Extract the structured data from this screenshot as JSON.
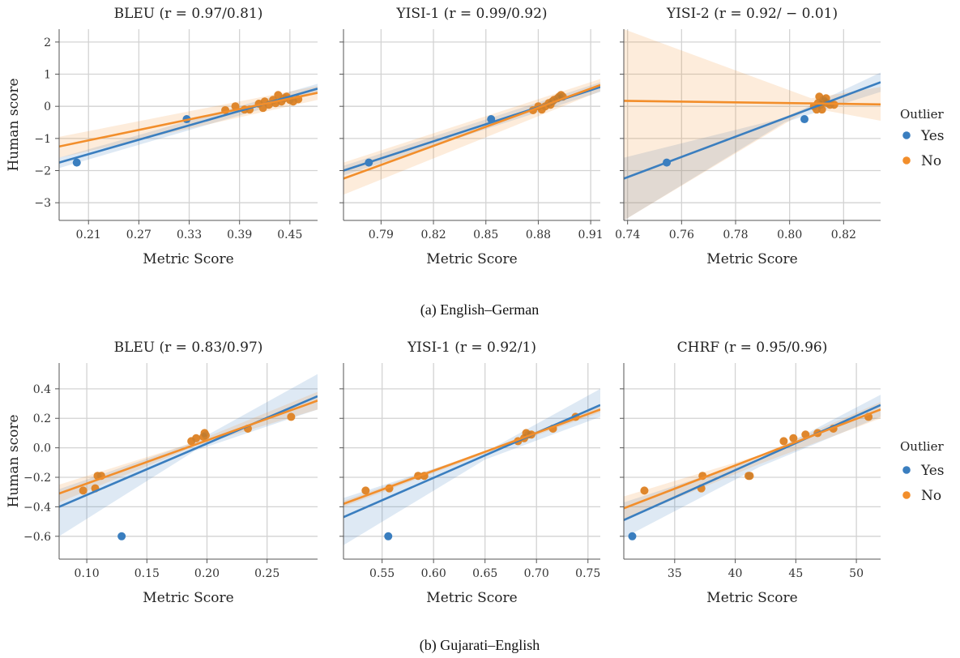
{
  "captions": [
    "(a) English–German",
    "(b) Gujarati–English"
  ],
  "legend": {
    "title": "Outlier",
    "items": [
      {
        "label": "Yes",
        "color": "#3a7ebf"
      },
      {
        "label": "No",
        "color": "#f28e2b"
      }
    ]
  },
  "chart_data": [
    {
      "type": "scatter",
      "row": 0,
      "col": 0,
      "title": "BLEU (r = 0.97/0.81)",
      "xlabel": "Metric Score",
      "ylabel": "Human score",
      "xlim": [
        0.175,
        0.483
      ],
      "ylim": [
        -3.55,
        2.4
      ],
      "xticks": [
        0.21,
        0.27,
        0.33,
        0.39,
        0.45
      ],
      "xtick_labels": [
        "0.21",
        "0.27",
        "0.33",
        "0.39",
        "0.45"
      ],
      "yticks": [
        2,
        1,
        0,
        -1,
        -2,
        -3
      ],
      "ytick_labels": [
        "2",
        "1",
        "0",
        "−1",
        "−2",
        "−3"
      ],
      "points_outlier": [
        [
          0.196,
          -1.75
        ],
        [
          0.327,
          -0.4
        ]
      ],
      "points_normal": [
        [
          0.373,
          -0.12
        ],
        [
          0.385,
          0.0
        ],
        [
          0.396,
          -0.1
        ],
        [
          0.402,
          -0.1
        ],
        [
          0.413,
          0.08
        ],
        [
          0.418,
          -0.05
        ],
        [
          0.42,
          0.15
        ],
        [
          0.425,
          0.05
        ],
        [
          0.43,
          0.2
        ],
        [
          0.433,
          0.1
        ],
        [
          0.436,
          0.35
        ],
        [
          0.44,
          0.15
        ],
        [
          0.443,
          0.25
        ],
        [
          0.446,
          0.3
        ],
        [
          0.45,
          0.2
        ],
        [
          0.454,
          0.15
        ],
        [
          0.46,
          0.22
        ]
      ],
      "fit_all": [
        [
          0.175,
          -1.75
        ],
        [
          0.483,
          0.55
        ]
      ],
      "fit_normal": [
        [
          0.175,
          -1.25
        ],
        [
          0.483,
          0.42
        ]
      ],
      "ci_all": [
        [
          0.175,
          -1.6,
          -1.92
        ],
        [
          0.483,
          0.7,
          0.42
        ]
      ],
      "ci_normal": [
        [
          0.175,
          -0.95,
          -1.6
        ],
        [
          0.483,
          0.63,
          0.2
        ]
      ]
    },
    {
      "type": "scatter",
      "row": 0,
      "col": 1,
      "title": "YISI-1 (r = 0.99/0.92)",
      "xlabel": "Metric Score",
      "xlim": [
        0.7685,
        0.9155
      ],
      "ylim": [
        -3.55,
        2.4
      ],
      "xticks": [
        0.79,
        0.82,
        0.85,
        0.88,
        0.91
      ],
      "xtick_labels": [
        "0.79",
        "0.82",
        "0.85",
        "0.88",
        "0.91"
      ],
      "points_outlier": [
        [
          0.783,
          -1.75
        ],
        [
          0.853,
          -0.4
        ]
      ],
      "points_normal": [
        [
          0.877,
          -0.12
        ],
        [
          0.88,
          0.0
        ],
        [
          0.882,
          -0.1
        ],
        [
          0.884,
          0.0
        ],
        [
          0.886,
          0.1
        ],
        [
          0.887,
          0.05
        ],
        [
          0.888,
          0.15
        ],
        [
          0.889,
          0.2
        ],
        [
          0.891,
          0.25
        ],
        [
          0.892,
          0.3
        ],
        [
          0.893,
          0.35
        ],
        [
          0.894,
          0.3
        ]
      ],
      "fit_all": [
        [
          0.7685,
          -2.0
        ],
        [
          0.9155,
          0.6
        ]
      ],
      "fit_normal": [
        [
          0.7685,
          -2.25
        ],
        [
          0.9155,
          0.66
        ]
      ],
      "ci_all": [
        [
          0.7685,
          -1.85,
          -2.15
        ],
        [
          0.9155,
          0.75,
          0.45
        ]
      ],
      "ci_normal": [
        [
          0.7685,
          -1.75,
          -2.75
        ],
        [
          0.9155,
          0.85,
          0.47
        ]
      ]
    },
    {
      "type": "scatter",
      "row": 0,
      "col": 2,
      "title": "YISI-2 (r = 0.92/ − 0.01)",
      "xlabel": "Metric Score",
      "xlim": [
        0.7386,
        0.8337
      ],
      "ylim": [
        -3.55,
        2.4
      ],
      "xticks": [
        0.74,
        0.76,
        0.78,
        0.8,
        0.82
      ],
      "xtick_labels": [
        "0.74",
        "0.76",
        "0.78",
        "0.80",
        "0.82"
      ],
      "points_outlier": [
        [
          0.7545,
          -1.75
        ],
        [
          0.8055,
          -0.4
        ]
      ],
      "points_normal": [
        [
          0.809,
          0.0
        ],
        [
          0.81,
          -0.1
        ],
        [
          0.8105,
          0.1
        ],
        [
          0.811,
          0.3
        ],
        [
          0.8115,
          0.05
        ],
        [
          0.812,
          -0.1
        ],
        [
          0.8125,
          0.2
        ],
        [
          0.813,
          0.15
        ],
        [
          0.8135,
          0.25
        ],
        [
          0.814,
          0.1
        ],
        [
          0.815,
          0.05
        ],
        [
          0.8165,
          0.05
        ]
      ],
      "fit_all": [
        [
          0.7386,
          -2.25
        ],
        [
          0.8337,
          0.75
        ]
      ],
      "fit_normal": [
        [
          0.7386,
          0.17
        ],
        [
          0.8337,
          0.06
        ]
      ],
      "ci_all": [
        [
          0.7386,
          -1.6,
          -3.55
        ],
        [
          0.7982,
          -0.35,
          -0.5
        ],
        [
          0.8337,
          1.05,
          0.45
        ]
      ],
      "ci_normal": [
        [
          0.7386,
          2.4,
          -3.55
        ],
        [
          0.808,
          0.25,
          -0.05
        ],
        [
          0.8337,
          0.6,
          -0.45
        ]
      ]
    },
    {
      "type": "scatter",
      "row": 1,
      "col": 0,
      "title": "BLEU (r = 0.83/0.97)",
      "xlabel": "Metric Score",
      "ylabel": "Human score",
      "xlim": [
        0.077,
        0.292
      ],
      "ylim": [
        -0.755,
        0.575
      ],
      "xticks": [
        0.1,
        0.15,
        0.2,
        0.25
      ],
      "xtick_labels": [
        "0.10",
        "0.15",
        "0.20",
        "0.25"
      ],
      "yticks": [
        0.4,
        0.2,
        0.0,
        -0.2,
        -0.4,
        -0.6
      ],
      "ytick_labels": [
        "0.4",
        "0.2",
        "0.0",
        "−0.2",
        "−0.4",
        "−0.6"
      ],
      "points_outlier": [
        [
          0.129,
          -0.6
        ]
      ],
      "points_normal": [
        [
          0.097,
          -0.29
        ],
        [
          0.107,
          -0.275
        ],
        [
          0.109,
          -0.19
        ],
        [
          0.112,
          -0.19
        ],
        [
          0.187,
          0.045
        ],
        [
          0.191,
          0.065
        ],
        [
          0.197,
          0.075
        ],
        [
          0.198,
          0.1
        ],
        [
          0.199,
          0.085
        ],
        [
          0.234,
          0.13
        ],
        [
          0.27,
          0.21
        ]
      ],
      "fit_all": [
        [
          0.077,
          -0.4
        ],
        [
          0.292,
          0.35
        ]
      ],
      "fit_normal": [
        [
          0.077,
          -0.31
        ],
        [
          0.292,
          0.32
        ]
      ],
      "ci_all": [
        [
          0.077,
          -0.28,
          -0.6
        ],
        [
          0.19,
          0.04,
          -0.02
        ],
        [
          0.292,
          0.5,
          0.26
        ]
      ],
      "ci_normal": [
        [
          0.077,
          -0.25,
          -0.37
        ],
        [
          0.19,
          0.04,
          0.01
        ],
        [
          0.292,
          0.38,
          0.26
        ]
      ]
    },
    {
      "type": "scatter",
      "row": 1,
      "col": 1,
      "title": "YISI-1 (r = 0.92/1)",
      "xlabel": "Metric Score",
      "xlim": [
        0.5125,
        0.762
      ],
      "ylim": [
        -0.755,
        0.575
      ],
      "xticks": [
        0.55,
        0.6,
        0.65,
        0.7,
        0.75
      ],
      "xtick_labels": [
        "0.55",
        "0.60",
        "0.65",
        "0.70",
        "0.75"
      ],
      "points_outlier": [
        [
          0.556,
          -0.6
        ]
      ],
      "points_normal": [
        [
          0.534,
          -0.29
        ],
        [
          0.557,
          -0.275
        ],
        [
          0.585,
          -0.19
        ],
        [
          0.591,
          -0.19
        ],
        [
          0.682,
          0.045
        ],
        [
          0.688,
          0.065
        ],
        [
          0.69,
          0.1
        ],
        [
          0.692,
          0.09
        ],
        [
          0.695,
          0.09
        ],
        [
          0.716,
          0.13
        ],
        [
          0.738,
          0.21
        ]
      ],
      "fit_all": [
        [
          0.5125,
          -0.47
        ],
        [
          0.762,
          0.29
        ]
      ],
      "fit_normal": [
        [
          0.5125,
          -0.38
        ],
        [
          0.762,
          0.26
        ]
      ],
      "ci_all": [
        [
          0.5125,
          -0.34,
          -0.66
        ],
        [
          0.65,
          -0.03,
          -0.08
        ],
        [
          0.762,
          0.4,
          0.21
        ]
      ],
      "ci_normal": [
        [
          0.5125,
          -0.36,
          -0.4
        ],
        [
          0.65,
          -0.02,
          -0.04
        ],
        [
          0.762,
          0.28,
          0.24
        ]
      ]
    },
    {
      "type": "scatter",
      "row": 1,
      "col": 2,
      "title": "CHRF (r = 0.95/0.96)",
      "xlabel": "Metric Score",
      "xlim": [
        30.8,
        52.0
      ],
      "ylim": [
        -0.755,
        0.575
      ],
      "xticks": [
        35,
        40,
        45,
        50
      ],
      "xtick_labels": [
        "35",
        "40",
        "45",
        "50"
      ],
      "points_outlier": [
        [
          31.5,
          -0.6
        ]
      ],
      "points_normal": [
        [
          32.5,
          -0.29
        ],
        [
          37.2,
          -0.275
        ],
        [
          37.3,
          -0.19
        ],
        [
          41.1,
          -0.19
        ],
        [
          41.2,
          -0.19
        ],
        [
          44.0,
          0.045
        ],
        [
          44.8,
          0.065
        ],
        [
          45.8,
          0.09
        ],
        [
          46.8,
          0.1
        ],
        [
          48.1,
          0.13
        ],
        [
          51.0,
          0.21
        ]
      ],
      "fit_all": [
        [
          30.8,
          -0.49
        ],
        [
          52.0,
          0.29
        ]
      ],
      "fit_normal": [
        [
          30.8,
          -0.41
        ],
        [
          52.0,
          0.26
        ]
      ],
      "ci_all": [
        [
          30.8,
          -0.37,
          -0.61
        ],
        [
          42.0,
          -0.07,
          -0.13
        ],
        [
          52.0,
          0.36,
          0.21
        ]
      ],
      "ci_normal": [
        [
          30.8,
          -0.33,
          -0.49
        ],
        [
          42.0,
          -0.05,
          -0.11
        ],
        [
          52.0,
          0.31,
          0.2
        ]
      ]
    }
  ]
}
